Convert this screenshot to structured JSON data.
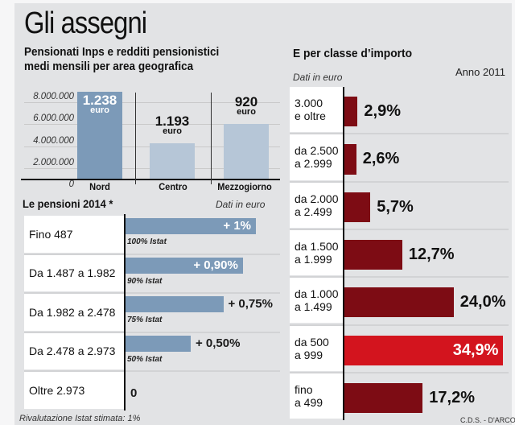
{
  "header": {
    "title": "Gli assegni",
    "subtitle_line1": "Pensionati Inps e redditi pensionistici",
    "subtitle_line2": "medi mensili per area geografica"
  },
  "chart_data": [
    {
      "type": "bar",
      "title": "Pensionati Inps e redditi pensionistici medi mensili per area geografica",
      "categories": [
        "Nord",
        "Centro",
        "Mezzogiorno"
      ],
      "values": [
        7900000,
        3200000,
        5000000
      ],
      "value_unit": "pensionati",
      "data_labels": [
        {
          "value": "1.238",
          "unit": "euro"
        },
        {
          "value": "1.193",
          "unit": "euro"
        },
        {
          "value": "920",
          "unit": "euro"
        }
      ],
      "ytick_labels": [
        "8.000.000",
        "6.000.000",
        "4.000.000",
        "2.000.000",
        "0"
      ],
      "ylim": [
        0,
        8000000
      ],
      "grid": true,
      "colors": [
        "#7c9ab8",
        "#b6c6d7",
        "#b6c6d7"
      ]
    },
    {
      "type": "bar",
      "orientation": "horizontal",
      "title": "Le pensioni  2014 *",
      "note": "Dati in euro",
      "categories": [
        "Fino 487",
        "Da 1.487 a 1.982",
        "Da 1.982 a 2.478",
        "Da 2.478 a 2.973",
        "Oltre 2.973"
      ],
      "values": [
        1,
        0.9,
        0.75,
        0.5,
        0
      ],
      "value_labels": [
        "+ 1%",
        "+ 0,90%",
        "+ 0,75%",
        "+ 0,50%",
        "0"
      ],
      "sub_labels": [
        "100% Istat",
        "90% Istat",
        "75% Istat",
        "50% Istat",
        ""
      ],
      "footnote": "Rivalutazione Istat  stimata: 1%",
      "color": "#7c9ab8"
    },
    {
      "type": "bar",
      "orientation": "horizontal",
      "title": "E per classe d’importo",
      "note": "Dati in euro",
      "year": "Anno 2011",
      "categories": [
        [
          "3.000",
          "e oltre"
        ],
        [
          "da 2.500",
          "a 2.999"
        ],
        [
          "da 2.000",
          "a 2.499"
        ],
        [
          "da 1.500",
          "a 1.999"
        ],
        [
          "da 1.000",
          "a 1.499"
        ],
        [
          "da 500",
          "a 999"
        ],
        [
          "fino",
          "a 499"
        ]
      ],
      "values": [
        2.9,
        2.6,
        5.7,
        12.7,
        24.0,
        34.9,
        17.2
      ],
      "value_labels": [
        "2,9%",
        "2,6%",
        "5,7%",
        "12,7%",
        "24,0%",
        "34,9%",
        "17,2%"
      ],
      "highlight_index": 5,
      "color": "#7d0c14",
      "highlight_color": "#d3141e"
    }
  ],
  "credit": "C.D.S. - D'ARCO"
}
